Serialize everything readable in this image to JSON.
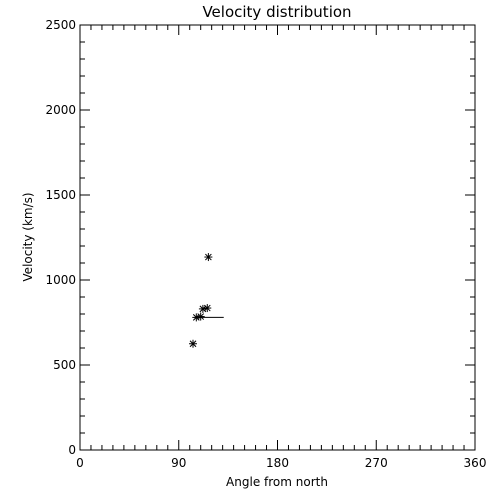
{
  "chart_data": {
    "type": "scatter",
    "title": "Velocity distribution",
    "xlabel": "Angle from north",
    "ylabel": "Velocity (km/s)",
    "xlim": [
      0,
      360
    ],
    "ylim": [
      0,
      2500
    ],
    "x_ticks": [
      0,
      90,
      180,
      270,
      360
    ],
    "x_tick_labels": [
      "0",
      "90",
      "180",
      "270",
      "360"
    ],
    "y_ticks": [
      0,
      500,
      1000,
      1500,
      2000,
      2500
    ],
    "y_tick_labels": [
      "0",
      "500",
      "1000",
      "1500",
      "2000",
      "2500"
    ],
    "grid": false,
    "marker": "asterisk",
    "points": [
      {
        "x": 103,
        "y": 625
      },
      {
        "x": 106,
        "y": 780
      },
      {
        "x": 110,
        "y": 785
      },
      {
        "x": 112,
        "y": 830
      },
      {
        "x": 116,
        "y": 835
      },
      {
        "x": 117,
        "y": 1135
      }
    ],
    "mean_marker": {
      "x_start": 106,
      "x_end": 131,
      "y": 780
    },
    "colors": {
      "axis": "#000000",
      "marker": "#000000",
      "background": "#ffffff"
    }
  }
}
